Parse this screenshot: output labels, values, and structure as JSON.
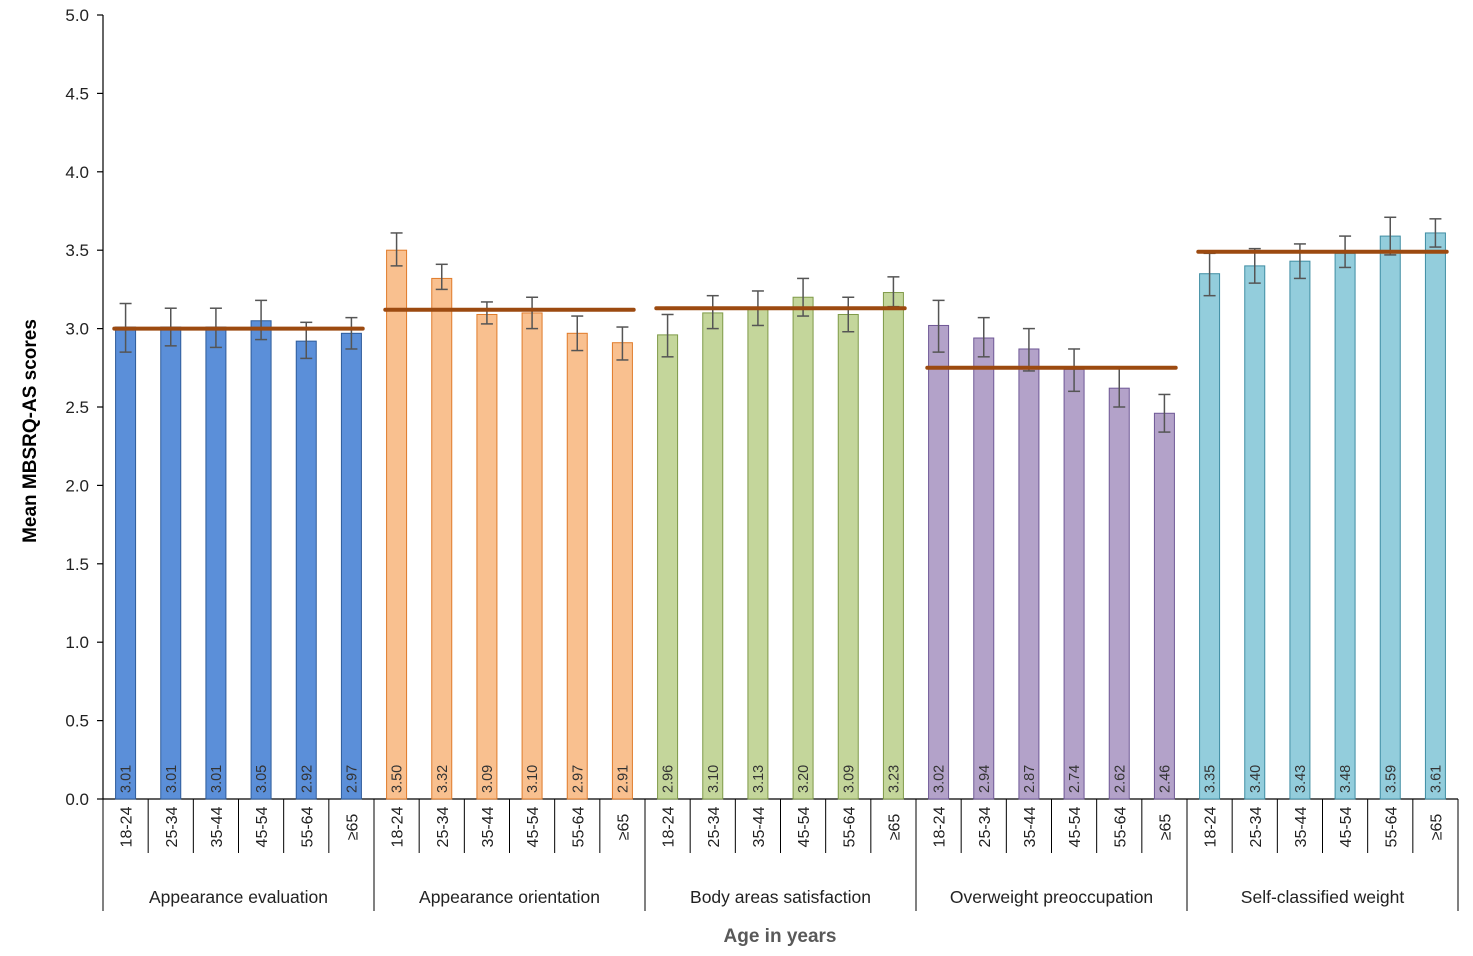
{
  "chart_data": {
    "type": "bar",
    "ylabel": "Mean MBSRQ-AS scores",
    "xlabel": "Age in years",
    "ylim": [
      0,
      5
    ],
    "y_ticks": [
      "0.0",
      "0.5",
      "1.0",
      "1.5",
      "2.0",
      "2.5",
      "3.0",
      "3.5",
      "4.0",
      "4.5",
      "5.0"
    ],
    "categories": [
      "18-24",
      "25-34",
      "35-44",
      "45-54",
      "55-64",
      "≥65"
    ],
    "groups": [
      {
        "name": "Appearance evaluation",
        "color": "#5b8fd9",
        "stroke": "#2e5b9a",
        "values": [
          3.01,
          3.01,
          3.01,
          3.05,
          2.92,
          2.97
        ],
        "labels": [
          "3.01",
          "3.01",
          "3.01",
          "3.05",
          "2.92",
          "2.97"
        ],
        "error_low": [
          2.85,
          2.89,
          2.88,
          2.93,
          2.81,
          2.87
        ],
        "error_high": [
          3.16,
          3.13,
          3.13,
          3.18,
          3.04,
          3.07
        ],
        "mean_line": 3.0
      },
      {
        "name": "Appearance orientation",
        "color": "#f9c08f",
        "stroke": "#e07b2a",
        "values": [
          3.5,
          3.32,
          3.09,
          3.1,
          2.97,
          2.91
        ],
        "labels": [
          "3.50",
          "3.32",
          "3.09",
          "3.10",
          "2.97",
          "2.91"
        ],
        "error_low": [
          3.4,
          3.25,
          3.03,
          3.0,
          2.86,
          2.8
        ],
        "error_high": [
          3.61,
          3.41,
          3.17,
          3.2,
          3.08,
          3.01
        ],
        "mean_line": 3.12
      },
      {
        "name": "Body areas satisfaction",
        "color": "#c4d69b",
        "stroke": "#7f9a48",
        "values": [
          2.96,
          3.1,
          3.13,
          3.2,
          3.09,
          3.23
        ],
        "labels": [
          "2.96",
          "3.10",
          "3.13",
          "3.20",
          "3.09",
          "3.23"
        ],
        "error_low": [
          2.82,
          3.0,
          3.02,
          3.08,
          2.98,
          3.14
        ],
        "error_high": [
          3.09,
          3.21,
          3.24,
          3.32,
          3.2,
          3.33
        ],
        "mean_line": 3.13
      },
      {
        "name": "Overweight preoccupation",
        "color": "#b3a2c9",
        "stroke": "#6f5896",
        "values": [
          3.02,
          2.94,
          2.87,
          2.74,
          2.62,
          2.46
        ],
        "labels": [
          "3.02",
          "2.94",
          "2.87",
          "2.74",
          "2.62",
          "2.46"
        ],
        "error_low": [
          2.85,
          2.82,
          2.73,
          2.6,
          2.5,
          2.34
        ],
        "error_high": [
          3.18,
          3.07,
          3.0,
          2.87,
          2.75,
          2.58
        ],
        "mean_line": 2.75
      },
      {
        "name": "Self-classified weight",
        "color": "#93cddc",
        "stroke": "#3f8da3",
        "values": [
          3.35,
          3.4,
          3.43,
          3.48,
          3.59,
          3.61
        ],
        "labels": [
          "3.35",
          "3.40",
          "3.43",
          "3.48",
          "3.59",
          "3.61"
        ],
        "error_low": [
          3.21,
          3.29,
          3.32,
          3.39,
          3.47,
          3.52
        ],
        "error_high": [
          3.48,
          3.51,
          3.54,
          3.59,
          3.71,
          3.7
        ],
        "mean_line": 3.49
      }
    ],
    "mean_line_color": "#9c4a10",
    "error_bar_color": "#555555"
  }
}
